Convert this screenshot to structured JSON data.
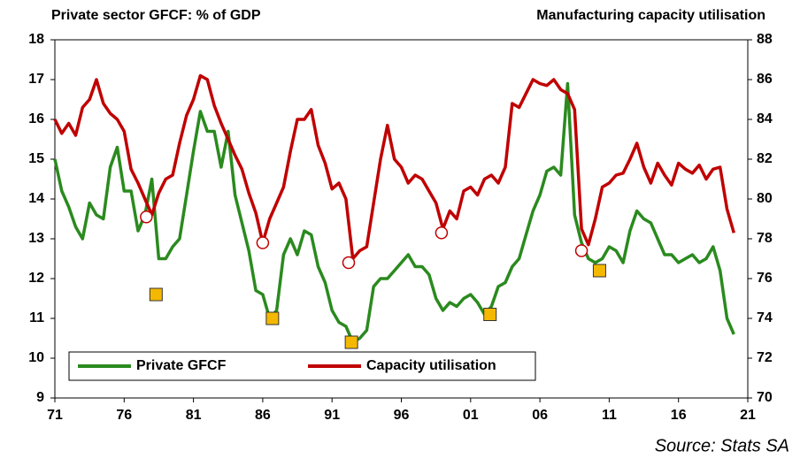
{
  "chart_data": {
    "type": "line",
    "title": "Private sector GFCF: % of GDP",
    "title_right": "Manufacturing capacity utilisation",
    "source": "Source: Stats SA",
    "xlim": [
      1971,
      2021
    ],
    "xticks": [
      {
        "value": 1971,
        "label": "71"
      },
      {
        "value": 1976,
        "label": "76"
      },
      {
        "value": 1981,
        "label": "81"
      },
      {
        "value": 1986,
        "label": "86"
      },
      {
        "value": 1991,
        "label": "91"
      },
      {
        "value": 1996,
        "label": "96"
      },
      {
        "value": 2001,
        "label": "01"
      },
      {
        "value": 2006,
        "label": "06"
      },
      {
        "value": 2011,
        "label": "11"
      },
      {
        "value": 2016,
        "label": "16"
      },
      {
        "value": 2021,
        "label": "21"
      }
    ],
    "ylim": [
      9,
      18
    ],
    "yticks": [
      9,
      10,
      11,
      12,
      13,
      14,
      15,
      16,
      17,
      18
    ],
    "y2lim": [
      70,
      88
    ],
    "y2ticks": [
      70,
      72,
      74,
      76,
      78,
      80,
      82,
      84,
      86,
      88
    ],
    "legend": "bottom-left",
    "x": [
      1971,
      1971.5,
      1972,
      1972.5,
      1973,
      1973.5,
      1974,
      1974.5,
      1975,
      1975.5,
      1976,
      1976.5,
      1977,
      1977.5,
      1978,
      1978.5,
      1979,
      1979.5,
      1980,
      1980.5,
      1981,
      1981.5,
      1982,
      1982.5,
      1983,
      1983.5,
      1984,
      1984.5,
      1985,
      1985.5,
      1986,
      1986.5,
      1987,
      1987.5,
      1988,
      1988.5,
      1989,
      1989.5,
      1990,
      1990.5,
      1991,
      1991.5,
      1992,
      1992.5,
      1993,
      1993.5,
      1994,
      1994.5,
      1995,
      1995.5,
      1996,
      1996.5,
      1997,
      1997.5,
      1998,
      1998.5,
      1999,
      1999.5,
      2000,
      2000.5,
      2001,
      2001.5,
      2002,
      2002.5,
      2003,
      2003.5,
      2004,
      2004.5,
      2005,
      2005.5,
      2006,
      2006.5,
      2007,
      2007.5,
      2008,
      2008.5,
      2009,
      2009.5,
      2010,
      2010.5,
      2011,
      2011.5,
      2012,
      2012.5,
      2013,
      2013.5,
      2014,
      2014.5,
      2015,
      2015.5,
      2016,
      2016.5,
      2017,
      2017.5,
      2018,
      2018.5,
      2019,
      2019.5,
      2020
    ],
    "series": [
      {
        "name": "Private GFCF",
        "color": "#2a8a1e",
        "axis": "y",
        "values": [
          15.0,
          14.2,
          13.8,
          13.3,
          13.0,
          13.9,
          13.6,
          13.5,
          14.8,
          15.3,
          14.2,
          14.2,
          13.2,
          13.6,
          14.5,
          12.5,
          12.5,
          12.8,
          13.0,
          14.1,
          15.2,
          16.2,
          15.7,
          15.7,
          14.8,
          15.7,
          14.1,
          13.4,
          12.7,
          11.7,
          11.6,
          11.0,
          11.2,
          12.6,
          13.0,
          12.6,
          13.2,
          13.1,
          12.3,
          11.9,
          11.2,
          10.9,
          10.8,
          10.4,
          10.5,
          10.7,
          11.8,
          12.0,
          12.0,
          12.2,
          12.4,
          12.6,
          12.3,
          12.3,
          12.1,
          11.5,
          11.2,
          11.4,
          11.3,
          11.5,
          11.6,
          11.4,
          11.1,
          11.3,
          11.8,
          11.9,
          12.3,
          12.5,
          13.1,
          13.7,
          14.1,
          14.7,
          14.8,
          14.6,
          16.9,
          13.6,
          12.9,
          12.5,
          12.4,
          12.5,
          12.8,
          12.7,
          12.4,
          13.2,
          13.7,
          13.5,
          13.4,
          13.0,
          12.6,
          12.6,
          12.4,
          12.5,
          12.6,
          12.4,
          12.5,
          12.8,
          12.2,
          11.0,
          10.6
        ],
        "troughs": {
          "x": [
            1978.3,
            1986.7,
            1992.4,
            2002.4,
            2010.3
          ],
          "values": [
            11.6,
            11.0,
            10.4,
            11.1,
            12.2
          ],
          "color": "#f5b800"
        }
      },
      {
        "name": "Capacity utilisation",
        "color": "#c00000",
        "axis": "y2",
        "values": [
          84.0,
          83.3,
          83.8,
          83.2,
          84.6,
          85.0,
          86.0,
          84.8,
          84.3,
          84.0,
          83.4,
          81.5,
          80.8,
          80.0,
          79.2,
          80.3,
          81.0,
          81.2,
          82.8,
          84.2,
          85.0,
          86.2,
          86.0,
          84.7,
          83.8,
          83.0,
          82.2,
          81.5,
          80.3,
          79.3,
          77.8,
          79.0,
          79.8,
          80.6,
          82.4,
          84.0,
          84.0,
          84.5,
          82.7,
          81.8,
          80.5,
          80.8,
          80.0,
          77.0,
          77.4,
          77.6,
          79.8,
          82.0,
          83.7,
          82.0,
          81.6,
          80.8,
          81.2,
          81.0,
          80.4,
          79.8,
          78.5,
          79.4,
          79.0,
          80.4,
          80.6,
          80.2,
          81.0,
          81.2,
          80.8,
          81.6,
          84.8,
          84.6,
          85.3,
          86.0,
          85.8,
          85.7,
          86.0,
          85.5,
          85.3,
          84.5,
          78.5,
          77.7,
          79.0,
          80.6,
          80.8,
          81.2,
          81.3,
          82.0,
          82.8,
          81.6,
          80.8,
          81.8,
          81.2,
          80.7,
          81.8,
          81.5,
          81.3,
          81.7,
          81.0,
          81.5,
          81.6,
          79.5,
          78.3
        ],
        "troughs": {
          "x": [
            1977.6,
            1986.0,
            1992.2,
            1998.9,
            2009.0
          ],
          "values": [
            79.1,
            77.8,
            76.8,
            78.3,
            77.4
          ],
          "color": "#ffffff"
        }
      }
    ]
  }
}
